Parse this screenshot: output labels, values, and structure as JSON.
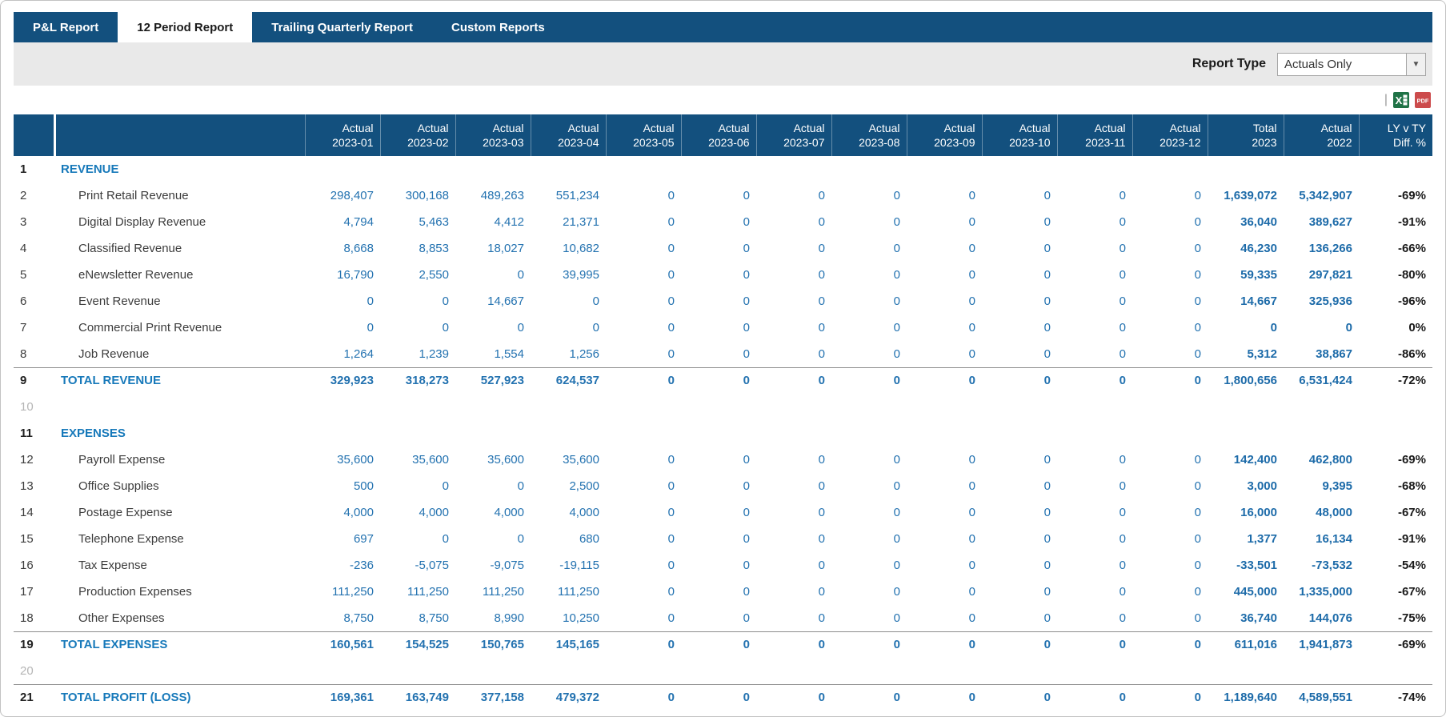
{
  "tabs": [
    {
      "label": "P&L Report",
      "active": false
    },
    {
      "label": "12 Period Report",
      "active": true
    },
    {
      "label": "Trailing Quarterly Report",
      "active": false
    },
    {
      "label": "Custom Reports",
      "active": false
    }
  ],
  "toolbar": {
    "report_type_label": "Report Type",
    "report_type_value": "Actuals Only"
  },
  "icons": {
    "dropdown_arrow": "▼",
    "divider": "|",
    "excel_glyph": "X",
    "pdf_glyph": "PDF"
  },
  "table": {
    "columns": [
      {
        "line1": "Actual",
        "line2": "2023-01"
      },
      {
        "line1": "Actual",
        "line2": "2023-02"
      },
      {
        "line1": "Actual",
        "line2": "2023-03"
      },
      {
        "line1": "Actual",
        "line2": "2023-04"
      },
      {
        "line1": "Actual",
        "line2": "2023-05"
      },
      {
        "line1": "Actual",
        "line2": "2023-06"
      },
      {
        "line1": "Actual",
        "line2": "2023-07"
      },
      {
        "line1": "Actual",
        "line2": "2023-08"
      },
      {
        "line1": "Actual",
        "line2": "2023-09"
      },
      {
        "line1": "Actual",
        "line2": "2023-10"
      },
      {
        "line1": "Actual",
        "line2": "2023-11"
      },
      {
        "line1": "Actual",
        "line2": "2023-12"
      },
      {
        "line1": "Total",
        "line2": "2023"
      },
      {
        "line1": "Actual",
        "line2": "2022"
      },
      {
        "line1": "LY v TY",
        "line2": "Diff. %"
      }
    ],
    "rows": [
      {
        "num": "1",
        "type": "section",
        "label": "REVENUE",
        "months": [
          "",
          "",
          "",
          "",
          "",
          "",
          "",
          "",
          "",
          "",
          "",
          ""
        ],
        "total": "",
        "prior": "",
        "diff": ""
      },
      {
        "num": "2",
        "type": "data",
        "label": "Print Retail Revenue",
        "months": [
          "298,407",
          "300,168",
          "489,263",
          "551,234",
          "0",
          "0",
          "0",
          "0",
          "0",
          "0",
          "0",
          "0"
        ],
        "total": "1,639,072",
        "prior": "5,342,907",
        "diff": "-69%"
      },
      {
        "num": "3",
        "type": "data",
        "label": "Digital Display Revenue",
        "months": [
          "4,794",
          "5,463",
          "4,412",
          "21,371",
          "0",
          "0",
          "0",
          "0",
          "0",
          "0",
          "0",
          "0"
        ],
        "total": "36,040",
        "prior": "389,627",
        "diff": "-91%"
      },
      {
        "num": "4",
        "type": "data",
        "label": "Classified Revenue",
        "months": [
          "8,668",
          "8,853",
          "18,027",
          "10,682",
          "0",
          "0",
          "0",
          "0",
          "0",
          "0",
          "0",
          "0"
        ],
        "total": "46,230",
        "prior": "136,266",
        "diff": "-66%"
      },
      {
        "num": "5",
        "type": "data",
        "label": "eNewsletter Revenue",
        "months": [
          "16,790",
          "2,550",
          "0",
          "39,995",
          "0",
          "0",
          "0",
          "0",
          "0",
          "0",
          "0",
          "0"
        ],
        "total": "59,335",
        "prior": "297,821",
        "diff": "-80%"
      },
      {
        "num": "6",
        "type": "data",
        "label": "Event Revenue",
        "months": [
          "0",
          "0",
          "14,667",
          "0",
          "0",
          "0",
          "0",
          "0",
          "0",
          "0",
          "0",
          "0"
        ],
        "total": "14,667",
        "prior": "325,936",
        "diff": "-96%"
      },
      {
        "num": "7",
        "type": "data",
        "label": "Commercial Print Revenue",
        "months": [
          "0",
          "0",
          "0",
          "0",
          "0",
          "0",
          "0",
          "0",
          "0",
          "0",
          "0",
          "0"
        ],
        "total": "0",
        "prior": "0",
        "diff": "0%"
      },
      {
        "num": "8",
        "type": "data",
        "label": "Job Revenue",
        "months": [
          "1,264",
          "1,239",
          "1,554",
          "1,256",
          "0",
          "0",
          "0",
          "0",
          "0",
          "0",
          "0",
          "0"
        ],
        "total": "5,312",
        "prior": "38,867",
        "diff": "-86%"
      },
      {
        "num": "9",
        "type": "total",
        "label": "TOTAL REVENUE",
        "months": [
          "329,923",
          "318,273",
          "527,923",
          "624,537",
          "0",
          "0",
          "0",
          "0",
          "0",
          "0",
          "0",
          "0"
        ],
        "total": "1,800,656",
        "prior": "6,531,424",
        "diff": "-72%"
      },
      {
        "num": "10",
        "type": "spacer",
        "label": "",
        "months": [
          "",
          "",
          "",
          "",
          "",
          "",
          "",
          "",
          "",
          "",
          "",
          ""
        ],
        "total": "",
        "prior": "",
        "diff": ""
      },
      {
        "num": "11",
        "type": "section",
        "label": "EXPENSES",
        "months": [
          "",
          "",
          "",
          "",
          "",
          "",
          "",
          "",
          "",
          "",
          "",
          ""
        ],
        "total": "",
        "prior": "",
        "diff": ""
      },
      {
        "num": "12",
        "type": "data",
        "label": "Payroll Expense",
        "months": [
          "35,600",
          "35,600",
          "35,600",
          "35,600",
          "0",
          "0",
          "0",
          "0",
          "0",
          "0",
          "0",
          "0"
        ],
        "total": "142,400",
        "prior": "462,800",
        "diff": "-69%"
      },
      {
        "num": "13",
        "type": "data",
        "label": "Office Supplies",
        "months": [
          "500",
          "0",
          "0",
          "2,500",
          "0",
          "0",
          "0",
          "0",
          "0",
          "0",
          "0",
          "0"
        ],
        "total": "3,000",
        "prior": "9,395",
        "diff": "-68%"
      },
      {
        "num": "14",
        "type": "data",
        "label": "Postage Expense",
        "months": [
          "4,000",
          "4,000",
          "4,000",
          "4,000",
          "0",
          "0",
          "0",
          "0",
          "0",
          "0",
          "0",
          "0"
        ],
        "total": "16,000",
        "prior": "48,000",
        "diff": "-67%"
      },
      {
        "num": "15",
        "type": "data",
        "label": "Telephone Expense",
        "months": [
          "697",
          "0",
          "0",
          "680",
          "0",
          "0",
          "0",
          "0",
          "0",
          "0",
          "0",
          "0"
        ],
        "total": "1,377",
        "prior": "16,134",
        "diff": "-91%"
      },
      {
        "num": "16",
        "type": "data",
        "label": "Tax Expense",
        "months": [
          "-236",
          "-5,075",
          "-9,075",
          "-19,115",
          "0",
          "0",
          "0",
          "0",
          "0",
          "0",
          "0",
          "0"
        ],
        "total": "-33,501",
        "prior": "-73,532",
        "diff": "-54%"
      },
      {
        "num": "17",
        "type": "data",
        "label": "Production Expenses",
        "months": [
          "111,250",
          "111,250",
          "111,250",
          "111,250",
          "0",
          "0",
          "0",
          "0",
          "0",
          "0",
          "0",
          "0"
        ],
        "total": "445,000",
        "prior": "1,335,000",
        "diff": "-67%"
      },
      {
        "num": "18",
        "type": "data",
        "label": "Other Expenses",
        "months": [
          "8,750",
          "8,750",
          "8,990",
          "10,250",
          "0",
          "0",
          "0",
          "0",
          "0",
          "0",
          "0",
          "0"
        ],
        "total": "36,740",
        "prior": "144,076",
        "diff": "-75%"
      },
      {
        "num": "19",
        "type": "total",
        "label": "TOTAL EXPENSES",
        "months": [
          "160,561",
          "154,525",
          "150,765",
          "145,165",
          "0",
          "0",
          "0",
          "0",
          "0",
          "0",
          "0",
          "0"
        ],
        "total": "611,016",
        "prior": "1,941,873",
        "diff": "-69%"
      },
      {
        "num": "20",
        "type": "spacer",
        "label": "",
        "months": [
          "",
          "",
          "",
          "",
          "",
          "",
          "",
          "",
          "",
          "",
          "",
          ""
        ],
        "total": "",
        "prior": "",
        "diff": ""
      },
      {
        "num": "21",
        "type": "total",
        "label": "TOTAL PROFIT (LOSS)",
        "months": [
          "169,361",
          "163,749",
          "377,158",
          "479,372",
          "0",
          "0",
          "0",
          "0",
          "0",
          "0",
          "0",
          "0"
        ],
        "total": "1,189,640",
        "prior": "4,589,551",
        "diff": "-74%"
      }
    ]
  }
}
